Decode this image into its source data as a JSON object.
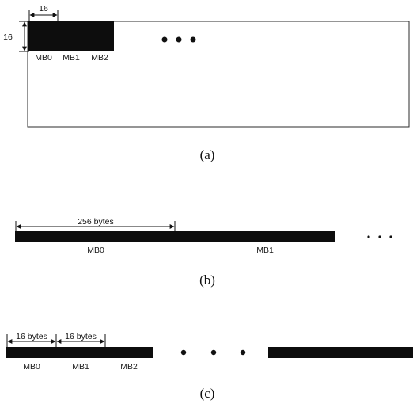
{
  "panel_a": {
    "width_label": "16",
    "height_label": "16",
    "mb_labels": [
      "MB0",
      "MB1",
      "MB2"
    ],
    "caption": "(a)"
  },
  "panel_b": {
    "dimension_label": "256 bytes",
    "mb_labels": [
      "MB0",
      "MB1"
    ],
    "caption": "(b)"
  },
  "panel_c": {
    "dimension_labels": [
      "16 bytes",
      "16 bytes"
    ],
    "mb_labels": [
      "MB0",
      "MB1",
      "MB2"
    ],
    "caption": "(c)"
  },
  "colors": {
    "ink": "#0d0d0d",
    "frame": "#2b2b2b"
  }
}
